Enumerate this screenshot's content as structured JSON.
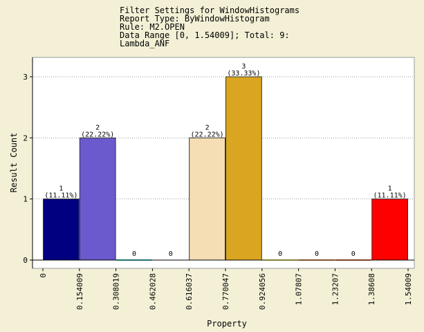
{
  "chart_data": {
    "type": "bar",
    "title_lines": [
      "Filter Settings for WindowHistograms",
      "Report Type: ByWindowHistogram",
      "Rule: M2.OPEN",
      "Data Range [0, 1.54009]; Total: 9:",
      "Lambda_ANF"
    ],
    "xlabel": "Property",
    "ylabel": "Result Count",
    "ylim": [
      0,
      3
    ],
    "yticks": [
      "0",
      "1",
      "2",
      "3"
    ],
    "xticks": [
      "0",
      "0.154009",
      "0.308019",
      "0.462028",
      "0.616037",
      "0.770047",
      "0.924056",
      "1.07807",
      "1.23207",
      "1.38608",
      "1.54009"
    ],
    "bars": [
      {
        "value": 1,
        "label_count": "1",
        "label_pct": "(11.11%)",
        "color": "#000080"
      },
      {
        "value": 2,
        "label_count": "2",
        "label_pct": "(22.22%)",
        "color": "#6a5acd"
      },
      {
        "value": 0,
        "label_count": "0",
        "label_pct": "",
        "color": "#40e0d0"
      },
      {
        "value": 0,
        "label_count": "0",
        "label_pct": "",
        "color": "#ffffff"
      },
      {
        "value": 2,
        "label_count": "2",
        "label_pct": "(22.22%)",
        "color": "#f5deb3"
      },
      {
        "value": 3,
        "label_count": "3",
        "label_pct": "(33.33%)",
        "color": "#daa520"
      },
      {
        "value": 0,
        "label_count": "0",
        "label_pct": "",
        "color": "#ffff66"
      },
      {
        "value": 0,
        "label_count": "0",
        "label_pct": "",
        "color": "#f4a460"
      },
      {
        "value": 0,
        "label_count": "0",
        "label_pct": "",
        "color": "#ff7f50"
      },
      {
        "value": 1,
        "label_count": "1",
        "label_pct": "(11.11%)",
        "color": "#ff0000"
      }
    ],
    "grid": true,
    "legend": "none"
  }
}
